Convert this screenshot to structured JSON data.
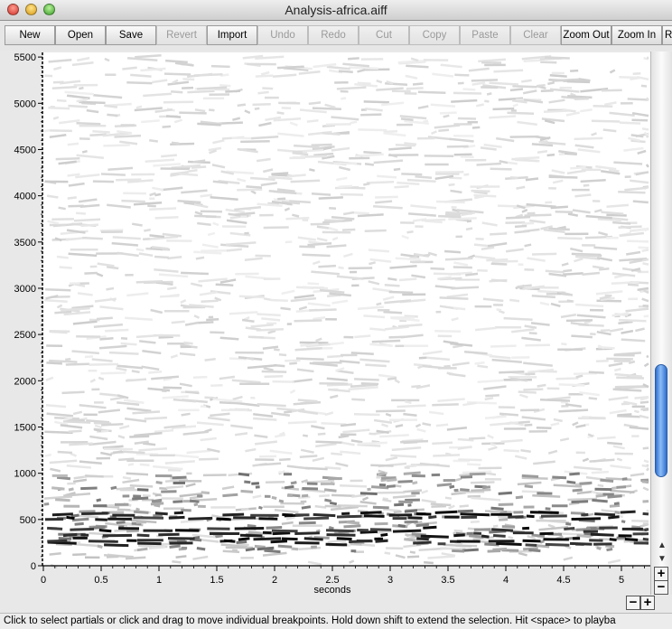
{
  "window": {
    "title": "Analysis-africa.aiff"
  },
  "toolbar": {
    "buttons": [
      {
        "label": "New",
        "enabled": true
      },
      {
        "label": "Open",
        "enabled": true
      },
      {
        "label": "Save",
        "enabled": true
      },
      {
        "label": "Revert",
        "enabled": false
      },
      {
        "label": "Import",
        "enabled": true
      },
      {
        "label": "Undo",
        "enabled": false
      },
      {
        "label": "Redo",
        "enabled": false
      },
      {
        "label": "Cut",
        "enabled": false
      },
      {
        "label": "Copy",
        "enabled": false
      },
      {
        "label": "Paste",
        "enabled": false
      },
      {
        "label": "Clear",
        "enabled": false
      },
      {
        "label": "Zoom Out",
        "enabled": true
      },
      {
        "label": "Zoom In",
        "enabled": true
      },
      {
        "label": "Re",
        "enabled": true
      }
    ]
  },
  "chart_data": {
    "type": "scatter",
    "xlabel": "seconds",
    "ylabel": "",
    "xlim": [
      0,
      5.25
    ],
    "ylim": [
      0,
      5550
    ],
    "x_ticks": [
      "0",
      "0.5",
      "1",
      "1.5",
      "2",
      "2.5",
      "3",
      "3.5",
      "4",
      "4.5",
      "5"
    ],
    "y_ticks": [
      "0",
      "500",
      "1000",
      "1500",
      "2000",
      "2500",
      "3000",
      "3500",
      "4000",
      "4500",
      "5000",
      "5500"
    ],
    "strong_partial_bands_hz": [
      245,
      280,
      340,
      390,
      520,
      560
    ]
  },
  "scroll": {
    "vertical_position": 0.85
  },
  "status": {
    "text": "Click to select partials or click and drag to move individual breakpoints. Hold down shift to extend the selection. Hit <space> to playba"
  },
  "icons": {
    "zoom_minus": "minus-icon",
    "zoom_plus": "plus-icon",
    "zoom_minus_glyph": "−",
    "zoom_plus_glyph": "+",
    "scroll_up_glyph": "▲",
    "scroll_down_glyph": "▼"
  }
}
